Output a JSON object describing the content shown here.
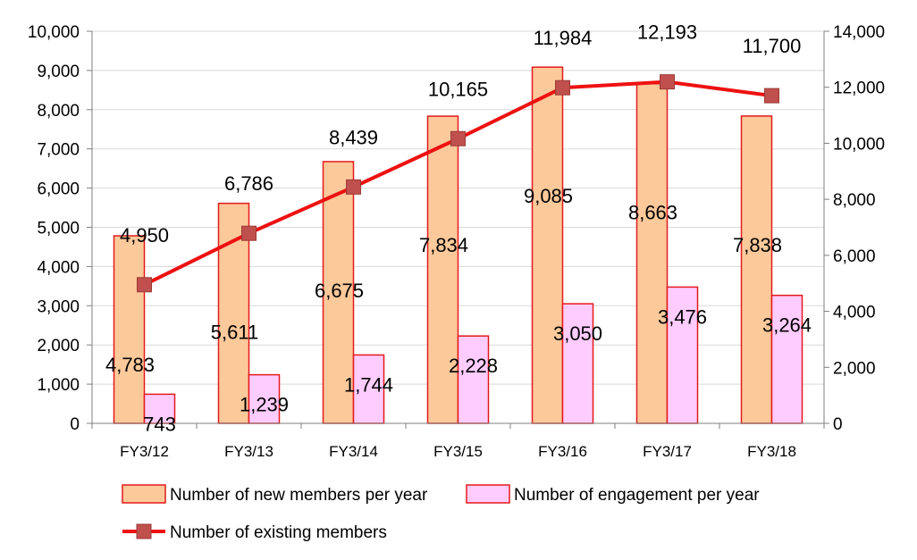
{
  "chart_data": {
    "type": "bar+line",
    "categories": [
      "FY3/12",
      "FY3/13",
      "FY3/14",
      "FY3/15",
      "FY3/16",
      "FY3/17",
      "FY3/18"
    ],
    "series": [
      {
        "name": "Number of new members per year",
        "type": "bar",
        "axis": "left",
        "values": [
          4783,
          5611,
          6675,
          7834,
          9085,
          8663,
          7838
        ],
        "labels": [
          "4,783",
          "5,611",
          "6,675",
          "7,834",
          "9,085",
          "8,663",
          "7,838"
        ],
        "color": "#FCC99A",
        "stroke": "#E31A1C"
      },
      {
        "name": "Number of engagement per year",
        "type": "bar",
        "axis": "left",
        "values": [
          743,
          1239,
          1744,
          2228,
          3050,
          3476,
          3264
        ],
        "labels": [
          "743",
          "1,239",
          "1,744",
          "2,228",
          "3,050",
          "3,476",
          "3,264"
        ],
        "color": "#FFCCFF",
        "stroke": "#E31A1C"
      },
      {
        "name": "Number of existing members",
        "type": "line",
        "axis": "right",
        "values": [
          4950,
          6786,
          8439,
          10165,
          11984,
          12193,
          11700
        ],
        "labels": [
          "4,950",
          "6,786",
          "8,439",
          "10,165",
          "11,984",
          "12,193",
          "11,700"
        ],
        "color": "#EE1111",
        "marker_color": "#C0504D"
      }
    ],
    "y_left": {
      "ylim": [
        0,
        10000
      ],
      "ticks": [
        "0",
        "1,000",
        "2,000",
        "3,000",
        "4,000",
        "5,000",
        "6,000",
        "7,000",
        "8,000",
        "9,000",
        "10,000"
      ]
    },
    "y_right": {
      "ylim": [
        0,
        14000
      ],
      "ticks": [
        "0",
        "2,000",
        "4,000",
        "6,000",
        "8,000",
        "10,000",
        "12,000",
        "14,000"
      ]
    },
    "grid": true,
    "legend": "bottom"
  }
}
